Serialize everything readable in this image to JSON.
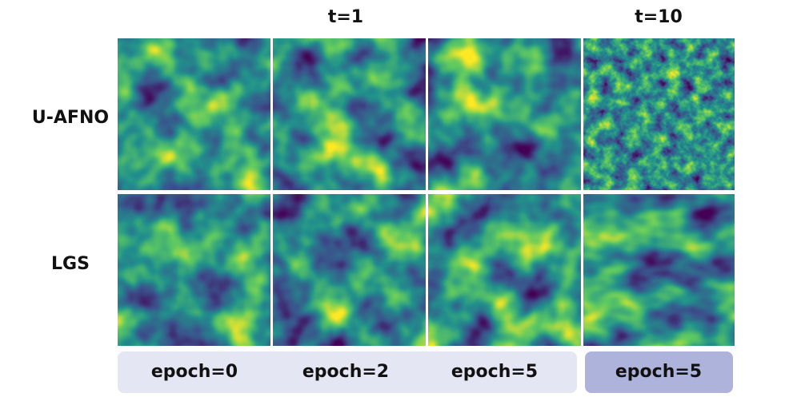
{
  "column_headers": [
    "t=1",
    "t=10"
  ],
  "row_labels": [
    "U-AFNO",
    "LGS"
  ],
  "footer_labels": [
    "epoch=0",
    "epoch=2",
    "epoch=5",
    "epoch=5"
  ]
}
